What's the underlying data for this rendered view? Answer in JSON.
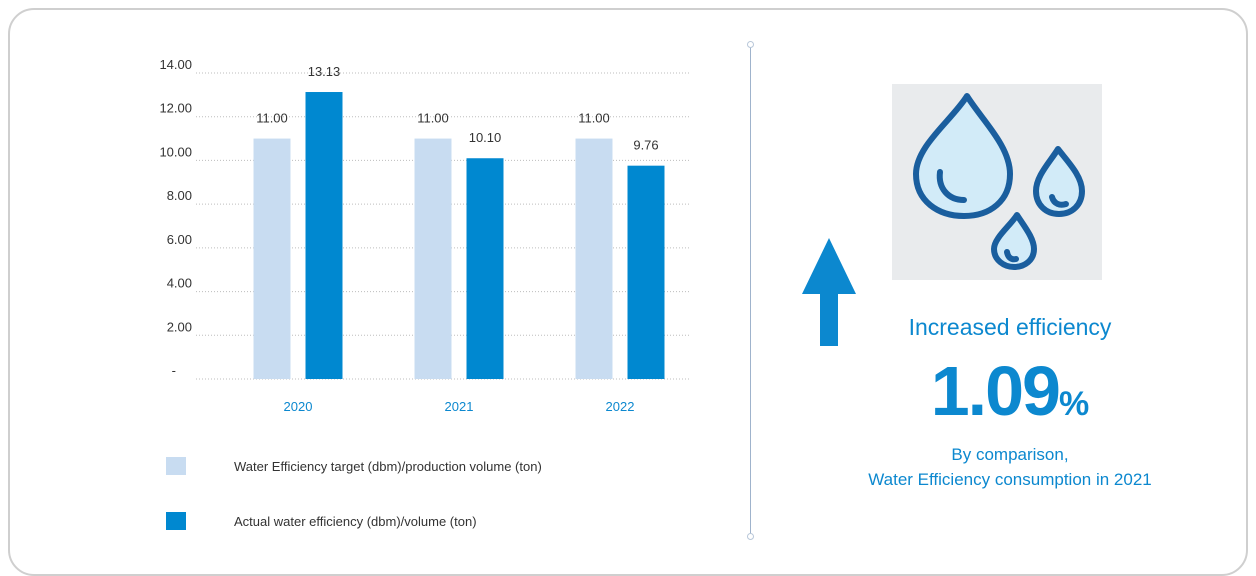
{
  "chart_data": {
    "type": "bar",
    "categories": [
      "2020",
      "2021",
      "2022"
    ],
    "series": [
      {
        "name": "Water Efficiency target (dbm)/production volume (ton)",
        "values": [
          11.0,
          11.0,
          11.0
        ],
        "labels": [
          "11.00",
          "11.00",
          "11.00"
        ],
        "color": "#c8dcf1"
      },
      {
        "name": "Actual water efficiency (dbm)/volume (ton)",
        "values": [
          13.13,
          10.1,
          9.76
        ],
        "labels": [
          "13.13",
          "10.10",
          "9.76"
        ],
        "color": "#0088d0"
      }
    ],
    "yticks": [
      0,
      2,
      4,
      6,
      8,
      10,
      12,
      14
    ],
    "ytick_labels": [
      "-",
      "2.00",
      "4.00",
      "6.00",
      "8.00",
      "10.00",
      "12.00",
      "14.00"
    ],
    "ylim": [
      0,
      14
    ],
    "grid": "horizontal dotted",
    "legend": "bottom-left",
    "category_color": "#0c88cf"
  },
  "summary": {
    "headline": "Increased efficiency",
    "value": "1.09",
    "unit": "%",
    "caption_line1": "By comparison,",
    "caption_line2": "Water Efficiency consumption in 2021",
    "accent_color": "#0c88cf",
    "arrow_icon": "up-arrow-icon",
    "image_icon": "water-drops-icon"
  }
}
